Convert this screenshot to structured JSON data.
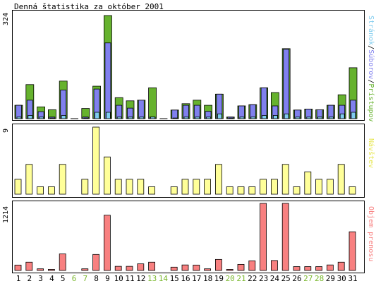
{
  "page": {
    "title": "Denná štatistika za október 2001"
  },
  "colors": {
    "green": "#66b22e",
    "blue": "#8080ee",
    "cyan": "#80ccee",
    "yellow": "#ffff99",
    "red": "#f88080",
    "weekday": "#000000",
    "weekend": "#7ab82e"
  },
  "chart_data": [
    {
      "type": "bar",
      "title": "Denná štatistika za október 2001",
      "categories": [
        "1",
        "2",
        "3",
        "4",
        "5",
        "6",
        "7",
        "8",
        "9",
        "10",
        "11",
        "12",
        "13",
        "14",
        "15",
        "16",
        "17",
        "18",
        "19",
        "20",
        "21",
        "22",
        "23",
        "24",
        "25",
        "26",
        "27",
        "28",
        "29",
        "30",
        "31"
      ],
      "weekend_days": [
        "6",
        "7",
        "13",
        "14",
        "20",
        "21",
        "27",
        "28"
      ],
      "ymax_label": "324",
      "legend": {
        "stranok": "Stránok",
        "sep1": "/",
        "suborov": "Súborov",
        "sep2": "/",
        "pristupov": "Prístupov"
      },
      "series": [
        {
          "name": "Prístupov",
          "color": "green",
          "values": [
            42,
            107,
            37,
            28,
            118,
            0,
            32,
            102,
            324,
            66,
            56,
            58,
            97,
            0,
            27,
            47,
            58,
            42,
            77,
            5,
            40,
            44,
            97,
            82,
            220,
            27,
            30,
            28,
            42,
            75,
            160
          ]
        },
        {
          "name": "Súborov",
          "color": "blue",
          "values": [
            42,
            58,
            22,
            5,
            90,
            0,
            5,
            93,
            238,
            42,
            33,
            58,
            5,
            0,
            27,
            42,
            42,
            23,
            77,
            5,
            40,
            44,
            97,
            40,
            218,
            27,
            30,
            28,
            42,
            42,
            58
          ]
        },
        {
          "name": "Stránok",
          "color": "cyan",
          "values": [
            5,
            10,
            5,
            2,
            10,
            0,
            2,
            20,
            20,
            5,
            5,
            5,
            5,
            0,
            2,
            5,
            5,
            5,
            15,
            2,
            5,
            5,
            10,
            10,
            15,
            5,
            5,
            5,
            5,
            15,
            20
          ]
        }
      ],
      "ylim": [
        0,
        324
      ]
    },
    {
      "type": "bar",
      "ymax_label": "9",
      "legend": {
        "navstev": "Návštev"
      },
      "series": [
        {
          "name": "Návštev",
          "color": "yellow",
          "values": [
            2,
            4,
            1,
            1,
            4,
            0,
            2,
            9,
            5,
            2,
            2,
            2,
            1,
            0,
            1,
            2,
            2,
            2,
            4,
            1,
            1,
            1,
            2,
            2,
            4,
            1,
            3,
            2,
            2,
            4,
            1
          ]
        }
      ],
      "ylim": [
        0,
        9
      ]
    },
    {
      "type": "bar",
      "ymax_label": "1214",
      "legend": {
        "prenos": "Objem prenosu"
      },
      "series": [
        {
          "name": "Objem prenosu",
          "color": "red",
          "values": [
            98,
            150,
            30,
            20,
            300,
            0,
            30,
            290,
            1000,
            75,
            75,
            120,
            150,
            0,
            60,
            100,
            98,
            30,
            200,
            20,
            110,
            175,
            1214,
            180,
            1214,
            70,
            70,
            70,
            100,
            150,
            700
          ]
        }
      ],
      "ylim": [
        0,
        1214
      ]
    }
  ]
}
